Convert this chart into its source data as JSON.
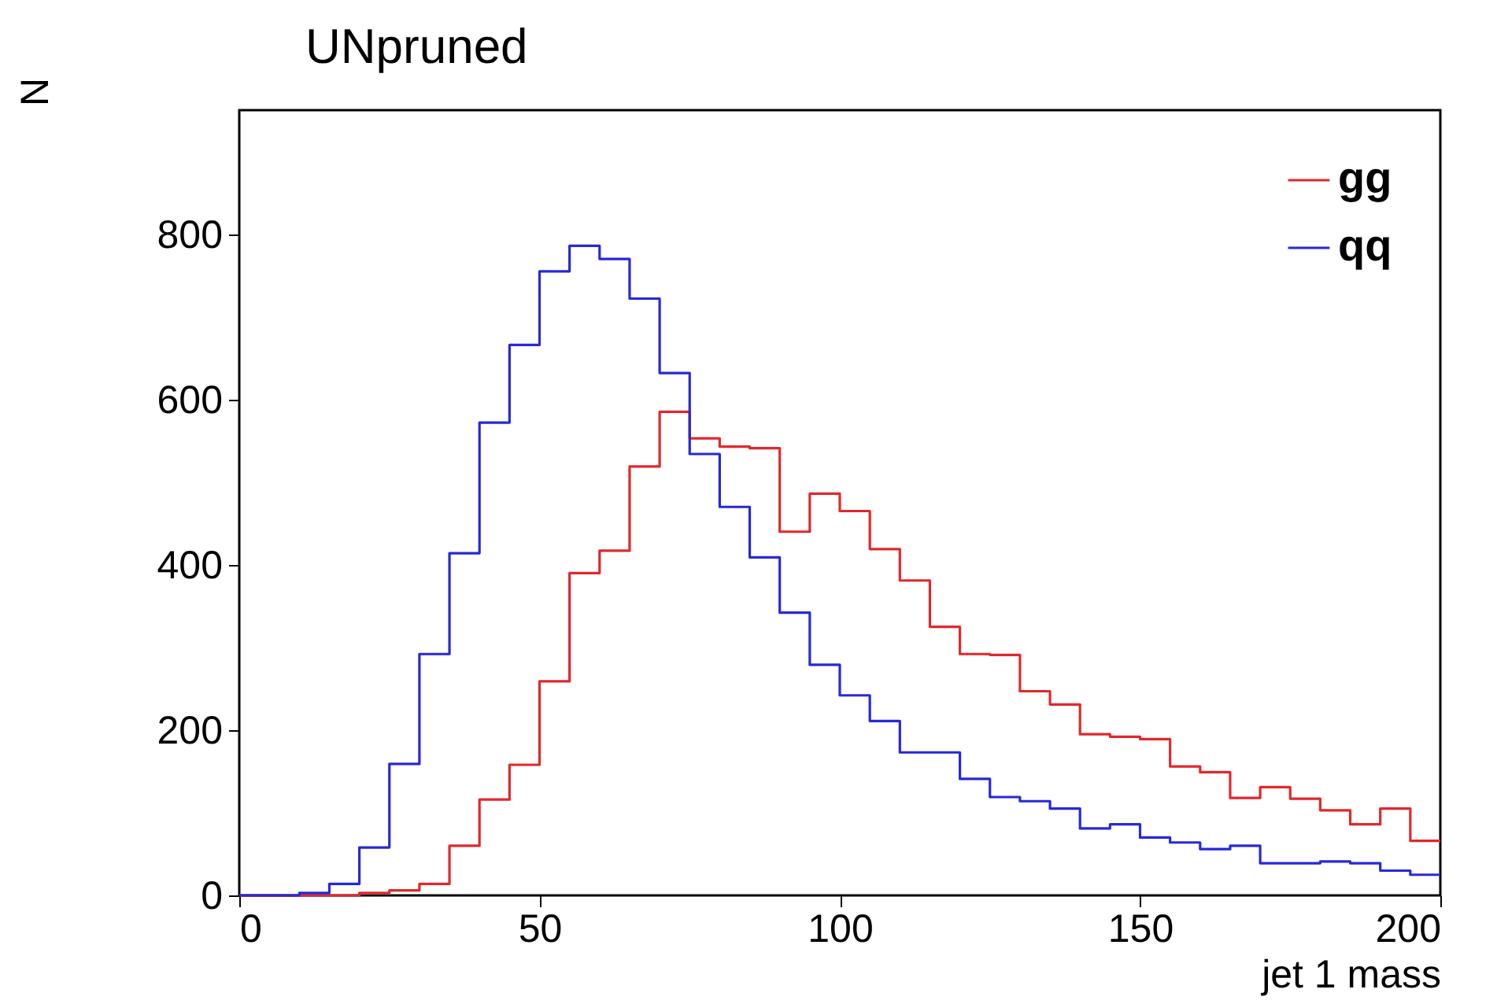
{
  "chart_data": {
    "type": "histogram",
    "title": "UNpruned",
    "xlabel": "jet 1 mass",
    "ylabel": "N",
    "bins": [
      0,
      5,
      10,
      15,
      20,
      25,
      30,
      35,
      40,
      45,
      50,
      55,
      60,
      65,
      70,
      75,
      80,
      85,
      90,
      95,
      100,
      105,
      110,
      115,
      120,
      125,
      130,
      135,
      140,
      145,
      150,
      155,
      160,
      165,
      170,
      175,
      180,
      185,
      190,
      195,
      200
    ],
    "series": [
      {
        "name": "gg",
        "color": "#e0282c",
        "values": [
          0,
          0,
          0,
          0,
          3,
          6,
          14,
          60,
          116,
          158,
          259,
          390,
          417,
          519,
          585,
          553,
          543,
          541,
          440,
          486,
          465,
          419,
          381,
          325,
          292,
          291,
          247,
          231,
          195,
          192,
          189,
          156,
          149,
          118,
          131,
          117,
          103,
          86,
          105,
          66
        ]
      },
      {
        "name": "qq",
        "color": "#2828d8",
        "values": [
          0,
          0,
          3,
          14,
          58,
          159,
          292,
          414,
          572,
          666,
          755,
          786,
          770,
          722,
          632,
          534,
          470,
          409,
          342,
          279,
          242,
          211,
          173,
          173,
          141,
          119,
          114,
          105,
          81,
          86,
          70,
          64,
          56,
          60,
          39,
          39,
          41,
          39,
          30,
          25
        ]
      }
    ],
    "xlim": [
      0,
      200
    ],
    "xticks": [
      0,
      50,
      100,
      150,
      200
    ],
    "ylim": [
      0,
      950
    ],
    "yticks": [
      0,
      200,
      400,
      600,
      800
    ],
    "legend": "top right",
    "grid": false
  }
}
